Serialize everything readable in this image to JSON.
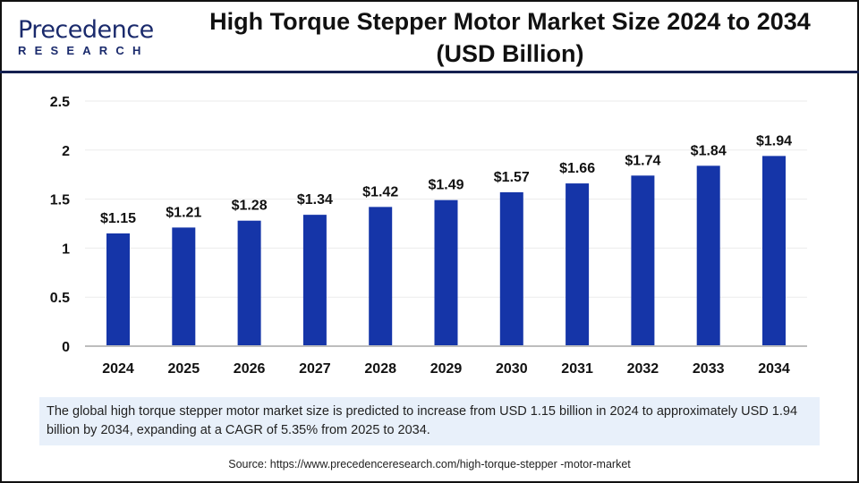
{
  "logo": {
    "word": "Precedence",
    "sub": "RESEARCH"
  },
  "title_line1": "High Torque Stepper Motor Market Size 2024 to 2034",
  "title_line2": "(USD Billion)",
  "chart_data": {
    "type": "bar",
    "categories": [
      "2024",
      "2025",
      "2026",
      "2027",
      "2028",
      "2029",
      "2030",
      "2031",
      "2032",
      "2033",
      "2034"
    ],
    "values": [
      1.15,
      1.21,
      1.28,
      1.34,
      1.42,
      1.49,
      1.57,
      1.66,
      1.74,
      1.84,
      1.94
    ],
    "data_labels": [
      "$1.15",
      "$1.21",
      "$1.28",
      "$1.34",
      "$1.42",
      "$1.49",
      "$1.57",
      "$1.66",
      "$1.74",
      "$1.84",
      "$1.94"
    ],
    "yticks": [
      "0",
      "0.5",
      "1",
      "1.5",
      "2",
      "2.5"
    ],
    "ylim": [
      0,
      2.5
    ],
    "grid": true,
    "bar_color": "#1535a8"
  },
  "note": "The global high torque stepper motor market size is predicted to increase from USD 1.15 billion in 2024 to approximately USD 1.94 billion by 2034, expanding at a CAGR of 5.35% from 2025 to 2034.",
  "source": "Source: https://www.precedenceresearch.com/high-torque-stepper -motor-market"
}
